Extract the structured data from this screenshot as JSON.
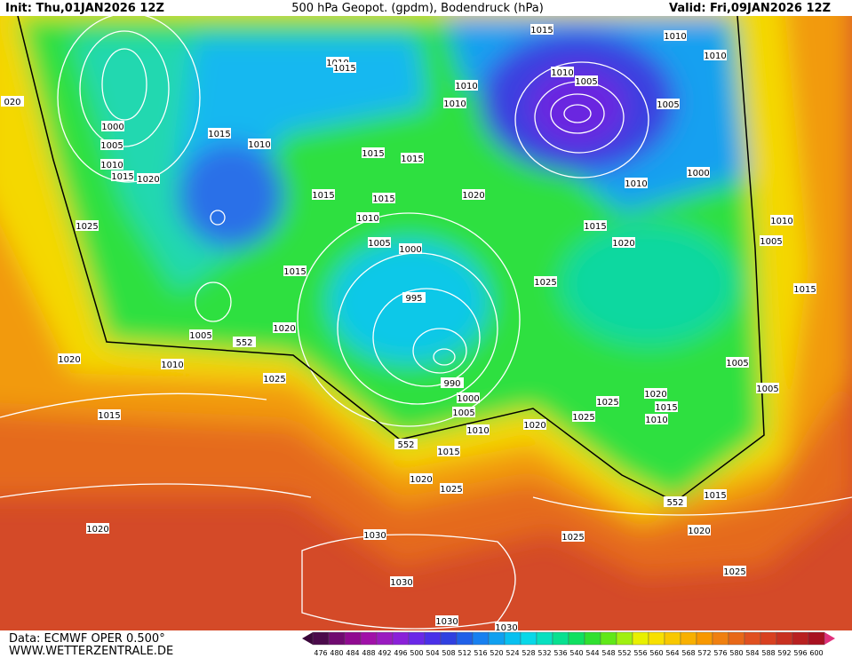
{
  "header": {
    "init": "Init: Thu,01JAN2026 12Z",
    "title": "500 hPa Geopot. (gpdm), Bodendruck (hPa)",
    "valid": "Valid: Fri,09JAN2026 12Z"
  },
  "footer": {
    "source": "Data: ECMWF OPER 0.500°",
    "website": "WWW.WETTERZENTRALE.DE"
  },
  "colorbar": {
    "labels": [
      476,
      480,
      484,
      488,
      492,
      496,
      500,
      504,
      508,
      512,
      516,
      520,
      524,
      528,
      532,
      536,
      540,
      544,
      548,
      552,
      556,
      560,
      564,
      568,
      572,
      576,
      580,
      584,
      588,
      592,
      596,
      600
    ],
    "colors": [
      "#4b0a4b",
      "#700a70",
      "#900a90",
      "#a010a8",
      "#9a1ac0",
      "#8a20d8",
      "#6a28e8",
      "#4a30e8",
      "#3040e0",
      "#2060e8",
      "#1880f0",
      "#10a0f0",
      "#08c0f0",
      "#08d8e8",
      "#08e0c0",
      "#08e090",
      "#10e060",
      "#30e030",
      "#60e818",
      "#a0f010",
      "#e8f000",
      "#f8e000",
      "#f8c800",
      "#f8b000",
      "#f89800",
      "#f08010",
      "#e86818",
      "#e05020",
      "#d84020",
      "#c83020",
      "#b82020",
      "#a81020"
    ]
  },
  "isobar_labels": [
    1015,
    1010,
    1010,
    1010,
    1015,
    1010,
    1005,
    1010,
    1010,
    1005,
    1000,
    1005,
    1010,
    1015,
    1020,
    1015,
    1010,
    1015,
    1015,
    1000,
    1010,
    1015,
    1015,
    1020,
    1010,
    1015,
    1010,
    1025,
    1005,
    1000,
    1020,
    1005,
    1015,
    1025,
    1015,
    995,
    1020,
    1005,
    552,
    1020,
    1010,
    1005,
    990,
    1025,
    1005,
    1000,
    1020,
    1025,
    1015,
    1005,
    1010,
    1015,
    1025,
    1020,
    1010,
    552,
    1015,
    1020,
    1025,
    552,
    1015,
    1020,
    1020,
    1025,
    1030,
    1025,
    1030,
    1030,
    1030,
    "020"
  ]
}
